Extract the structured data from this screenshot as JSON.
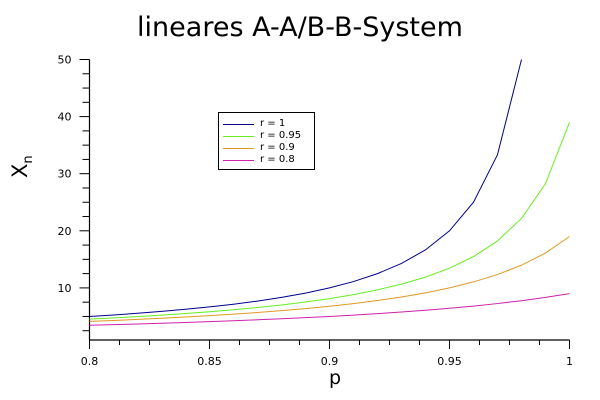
{
  "chart_data": {
    "type": "line",
    "title": "lineares A-A/B-B-System",
    "xlabel": "p",
    "ylabel": "X",
    "ylabel_subscript": "n",
    "xlim": [
      0.8,
      1.0
    ],
    "ylim": [
      0.9,
      50
    ],
    "x_ticks": [
      0.8,
      0.85,
      0.9,
      0.95,
      1.0
    ],
    "x_tick_labels": [
      "0.8",
      "0.85",
      "0.9",
      "0.95",
      "1"
    ],
    "y_ticks": [
      10,
      20,
      30,
      40,
      50
    ],
    "y_tick_labels": [
      "10",
      "20",
      "30",
      "40",
      "50"
    ],
    "grid": false,
    "legend_position": "upper left (inside, near center-left)",
    "series": [
      {
        "name": "r = 1",
        "color": "#00008b",
        "x": [
          0.8,
          0.81,
          0.82,
          0.83,
          0.84,
          0.85,
          0.86,
          0.87,
          0.88,
          0.89,
          0.9,
          0.91,
          0.92,
          0.93,
          0.94,
          0.95,
          0.96,
          0.97,
          0.98
        ],
        "values": [
          5.0,
          5.263,
          5.556,
          5.882,
          6.25,
          6.667,
          7.143,
          7.692,
          8.333,
          9.091,
          10.0,
          11.111,
          12.5,
          14.286,
          16.667,
          20.0,
          25.0,
          33.333,
          50.0
        ]
      },
      {
        "name": "r = 0.95",
        "color": "#66ee22",
        "x": [
          0.8,
          0.81,
          0.82,
          0.83,
          0.84,
          0.85,
          0.86,
          0.87,
          0.88,
          0.89,
          0.9,
          0.91,
          0.92,
          0.93,
          0.94,
          0.95,
          0.96,
          0.97,
          0.98,
          0.99,
          1.0
        ],
        "values": [
          4.535,
          4.745,
          4.974,
          5.228,
          5.508,
          5.821,
          6.171,
          6.566,
          7.014,
          7.529,
          8.125,
          8.824,
          9.653,
          10.656,
          11.89,
          13.448,
          15.476,
          18.224,
          22.159,
          28.261,
          39.0
        ]
      },
      {
        "name": "r = 0.9",
        "color": "#dd9922",
        "x": [
          0.8,
          0.81,
          0.82,
          0.83,
          0.84,
          0.85,
          0.86,
          0.87,
          0.88,
          0.89,
          0.9,
          0.91,
          0.92,
          0.93,
          0.94,
          0.95,
          0.96,
          0.97,
          0.98,
          0.99,
          1.0
        ],
        "values": [
          4.13,
          4.299,
          4.481,
          4.68,
          4.897,
          5.135,
          5.398,
          5.689,
          6.013,
          6.376,
          6.786,
          7.252,
          7.787,
          8.407,
          9.135,
          10.0,
          11.047,
          12.338,
          13.971,
          16.102,
          19.0
        ]
      },
      {
        "name": "r = 0.8",
        "color": "#cc22aa",
        "x": [
          0.8,
          0.81,
          0.82,
          0.83,
          0.84,
          0.85,
          0.86,
          0.87,
          0.88,
          0.89,
          0.9,
          0.91,
          0.92,
          0.93,
          0.94,
          0.95,
          0.96,
          0.97,
          0.98,
          0.99,
          1.0
        ],
        "values": [
          3.462,
          3.571,
          3.689,
          3.814,
          3.947,
          4.091,
          4.245,
          4.412,
          4.592,
          4.787,
          5.0,
          5.233,
          5.488,
          5.769,
          6.081,
          6.429,
          6.818,
          7.258,
          7.759,
          8.333,
          9.0
        ]
      }
    ]
  },
  "legend": {
    "items": [
      {
        "label": "r = 1",
        "color": "#00008b"
      },
      {
        "label": "r = 0.95",
        "color": "#66ee22"
      },
      {
        "label": "r = 0.9",
        "color": "#dd9922"
      },
      {
        "label": "r = 0.8",
        "color": "#cc22aa"
      }
    ]
  }
}
